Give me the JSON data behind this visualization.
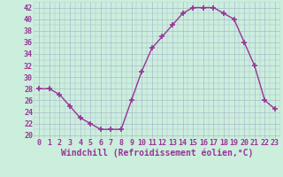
{
  "x": [
    0,
    1,
    2,
    3,
    4,
    5,
    6,
    7,
    8,
    9,
    10,
    11,
    12,
    13,
    14,
    15,
    16,
    17,
    18,
    19,
    20,
    21,
    22,
    23
  ],
  "y": [
    28,
    28,
    27,
    25,
    23,
    22,
    21,
    21,
    21,
    26,
    31,
    35,
    37,
    39,
    41,
    42,
    42,
    42,
    41,
    40,
    36,
    32,
    26,
    24.5
  ],
  "line_color": "#993399",
  "marker": "+",
  "marker_size": 4,
  "marker_lw": 1.2,
  "bg_color": "#cceedd",
  "grid_color": "#aabbcc",
  "xlabel": "Windchill (Refroidissement éolien,°C)",
  "xlabel_color": "#993399",
  "xlabel_fontsize": 7,
  "tick_color": "#993399",
  "tick_fontsize": 6,
  "ylim": [
    19.5,
    43
  ],
  "yticks": [
    20,
    22,
    24,
    26,
    28,
    30,
    32,
    34,
    36,
    38,
    40,
    42
  ],
  "xticks": [
    0,
    1,
    2,
    3,
    4,
    5,
    6,
    7,
    8,
    9,
    10,
    11,
    12,
    13,
    14,
    15,
    16,
    17,
    18,
    19,
    20,
    21,
    22,
    23
  ],
  "line_width": 1.0
}
